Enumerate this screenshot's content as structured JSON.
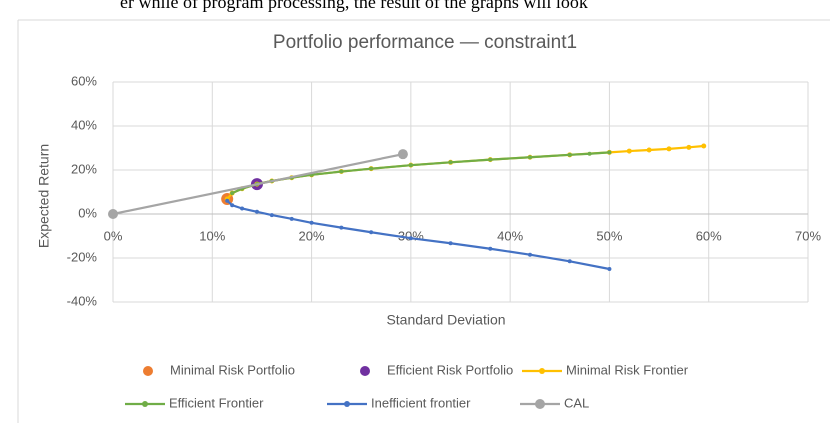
{
  "header": {
    "text": "er while of program processing, the result of the graphs will look"
  },
  "chart_data": {
    "type": "scatter",
    "title": "Portfolio performance — constraint1",
    "x_label": "Standard Deviation",
    "y_label": "Expected Return",
    "xlim": [
      0,
      70
    ],
    "ylim": [
      -40,
      60
    ],
    "xticks": [
      {
        "value": 0,
        "label": "0%"
      },
      {
        "value": 10,
        "label": "10%"
      },
      {
        "value": 20,
        "label": "20%"
      },
      {
        "value": 30,
        "label": "30%"
      },
      {
        "value": 40,
        "label": "40%"
      },
      {
        "value": 50,
        "label": "50%"
      },
      {
        "value": 60,
        "label": "60%"
      },
      {
        "value": 70,
        "label": "70%"
      }
    ],
    "yticks": [
      {
        "value": -40,
        "label": "-40%"
      },
      {
        "value": -20,
        "label": "-20%"
      },
      {
        "value": 0,
        "label": "0%"
      },
      {
        "value": 20,
        "label": "20%"
      },
      {
        "value": 40,
        "label": "40%"
      },
      {
        "value": 60,
        "label": "60%"
      }
    ],
    "grid": true,
    "legend": "bottom",
    "series": [
      {
        "name": "Minimal Risk Portfolio",
        "color": "#ed7d31",
        "line": false,
        "marker": 6,
        "x": [
          11.5
        ],
        "values": [
          6.8
        ]
      },
      {
        "name": "Efficient Risk Portfolio",
        "color": "#7030a0",
        "line": false,
        "marker": 6,
        "x": [
          14.5
        ],
        "values": [
          13.6
        ]
      },
      {
        "name": "Minimal Risk Frontier",
        "color": "#ffc000",
        "line": true,
        "marker": 2.5,
        "x": [
          11.5,
          12,
          13,
          14.5,
          16,
          18,
          20,
          23,
          26,
          30,
          34,
          38,
          42,
          46,
          50,
          52,
          54,
          56,
          58,
          59.5
        ],
        "values": [
          6.8,
          9.5,
          11.5,
          13.6,
          15,
          16.5,
          17.8,
          19.3,
          20.6,
          22.2,
          23.5,
          24.7,
          25.8,
          26.9,
          28,
          28.6,
          29.1,
          29.6,
          30.3,
          30.9
        ]
      },
      {
        "name": "Efficient Frontier",
        "color": "#70ad47",
        "line": true,
        "marker": 2,
        "x": [
          12,
          13,
          14.5,
          16,
          18,
          20,
          23,
          26,
          30,
          34,
          38,
          42,
          46,
          48,
          50
        ],
        "values": [
          9.5,
          11.5,
          13.6,
          15,
          16.5,
          17.8,
          19.3,
          20.6,
          22.2,
          23.5,
          24.7,
          25.8,
          26.9,
          27.4,
          28
        ]
      },
      {
        "name": "Inefficient frontier",
        "color": "#4472c4",
        "line": true,
        "marker": 2,
        "x": [
          11.5,
          12,
          13,
          14.5,
          16,
          18,
          20,
          23,
          26,
          30,
          34,
          38,
          42,
          46,
          50
        ],
        "values": [
          6,
          4,
          2.5,
          1,
          -0.5,
          -2.2,
          -4,
          -6.2,
          -8.3,
          -11,
          -13.3,
          -15.8,
          -18.5,
          -21.5,
          -25
        ]
      },
      {
        "name": "CAL",
        "color": "#a5a5a5",
        "line": true,
        "marker": 5,
        "x": [
          0,
          29.2
        ],
        "values": [
          0,
          27.2
        ]
      }
    ]
  }
}
